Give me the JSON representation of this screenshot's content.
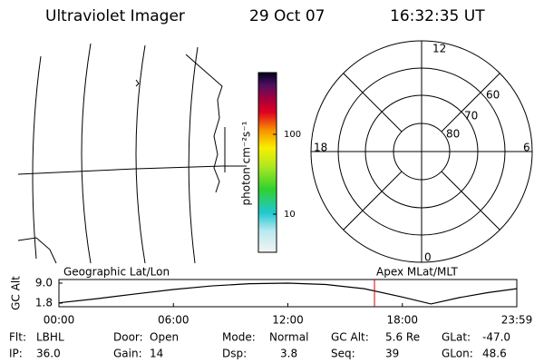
{
  "header": {
    "instrument": "Ultraviolet Imager",
    "date": "29 Oct 07",
    "time": "16:32:35 UT"
  },
  "colorbar": {
    "label": "photon cm⁻²s⁻¹",
    "ticks": [
      "100",
      "10"
    ]
  },
  "polar": {
    "mlt_labels": [
      "12",
      "18",
      "6",
      "0"
    ],
    "lat_labels": [
      "60",
      "70",
      "80"
    ]
  },
  "chart_data": {
    "type": "line",
    "ylabel": "GC Alt",
    "left_label": "Geographic Lat/Lon",
    "right_label": "Apex MLat/MLT",
    "x": [
      0,
      2,
      4,
      6,
      8,
      10,
      12,
      14,
      16,
      18,
      19.5,
      21,
      22.5,
      24
    ],
    "values": [
      1.9,
      3.4,
      5.1,
      6.7,
      8.0,
      8.8,
      9.0,
      8.5,
      7.0,
      4.0,
      1.5,
      3.8,
      5.6,
      7.0
    ],
    "color": "#000000",
    "marker_x": 16.54,
    "marker_color": "#cc0000",
    "xlim": [
      0,
      24
    ],
    "ylim": [
      1.8,
      9.0
    ],
    "xticks": [
      {
        "value": 0,
        "label": "00:00"
      },
      {
        "value": 6,
        "label": "06:00"
      },
      {
        "value": 12,
        "label": "12:00"
      },
      {
        "value": 18,
        "label": "18:00"
      },
      {
        "value": 24,
        "label": "23:59"
      }
    ],
    "yticks": [
      {
        "value": 9.0,
        "label": "9.0"
      },
      {
        "value": 1.8,
        "label": "1.8"
      }
    ]
  },
  "info": [
    [
      {
        "label": "Flt:",
        "value": "LBHL"
      },
      {
        "label": "Door:",
        "value": "Open"
      },
      {
        "label": "Mode:",
        "value": "Normal"
      },
      {
        "label": "GC Alt:",
        "value": "5.6 Re"
      },
      {
        "label": "GLat:",
        "value": "-47.0"
      }
    ],
    [
      {
        "label": "IP:",
        "value": "36.0"
      },
      {
        "label": "Gain:",
        "value": "14"
      },
      {
        "label": "Dsp:",
        "value": "3.8"
      },
      {
        "label": "Seq:",
        "value": "39"
      },
      {
        "label": "GLon:",
        "value": "48.6"
      }
    ]
  ]
}
